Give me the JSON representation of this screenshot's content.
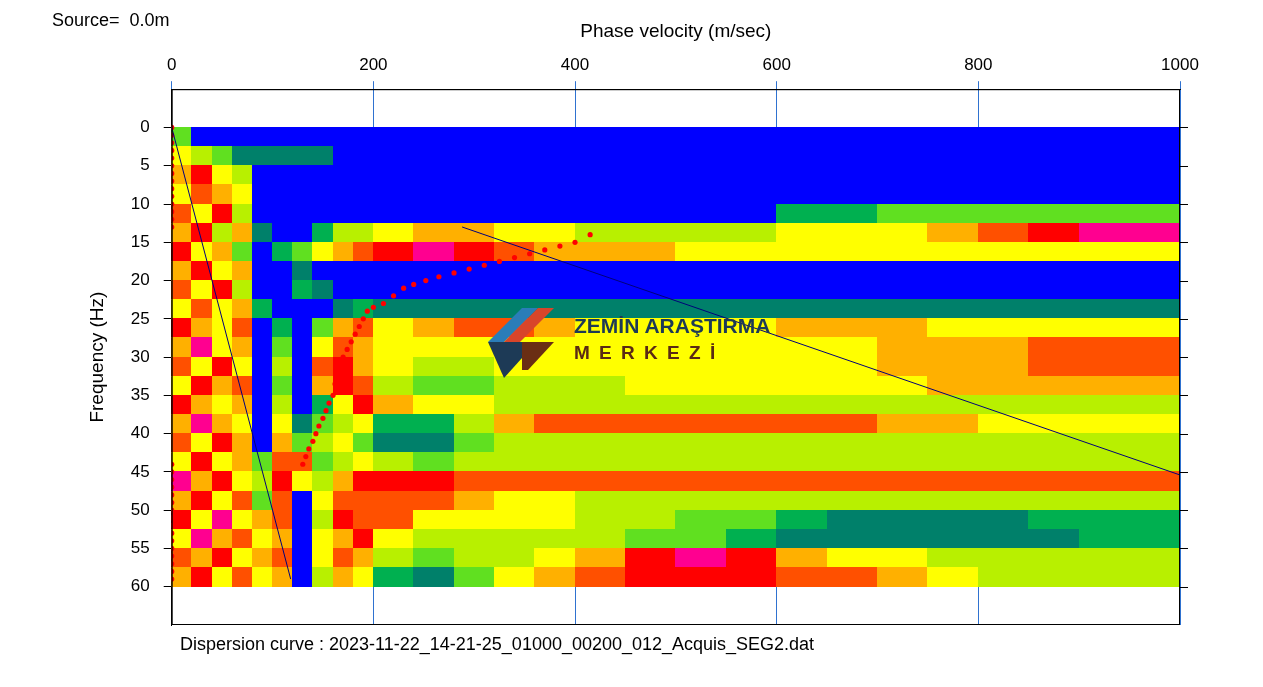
{
  "chart_data": {
    "type": "heatmap",
    "title": "Source=  0.0m",
    "x_label": "Phase velocity (m/sec)",
    "y_label": "Frequency (Hz)",
    "footer": "Dispersion curve : 2023-11-22_14-21-25_01000_00200_012_Acquis_SEG2.dat",
    "watermark": [
      "ZEMİN ARAŞTIRMA",
      "M E R K E Z İ"
    ],
    "xlim": [
      0,
      1000
    ],
    "xticks": [
      0,
      200,
      400,
      600,
      800,
      1000
    ],
    "ylim": [
      -5,
      65
    ],
    "yticks": [
      0,
      5,
      10,
      15,
      20,
      25,
      30,
      35,
      40,
      45,
      50,
      55,
      60
    ],
    "grid": true,
    "colors": [
      "#0000ff",
      "#00806a",
      "#00b050",
      "#60e020",
      "#b8f000",
      "#ffff00",
      "#ffb000",
      "#ff5000",
      "#ff0000",
      "#ff0090"
    ],
    "cells": {
      "zlim": [
        0,
        9
      ],
      "x_edges": [
        0,
        20,
        40,
        60,
        80,
        100,
        120,
        140,
        160,
        180,
        200,
        240,
        280,
        320,
        360,
        400,
        450,
        500,
        550,
        600,
        650,
        700,
        750,
        800,
        850,
        900,
        950,
        1000
      ],
      "y_edges": [
        0,
        2.5,
        5,
        7.5,
        10,
        12.5,
        15,
        17.5,
        20,
        22.5,
        25,
        27.5,
        30,
        32.5,
        35,
        37.5,
        40,
        42.5,
        45,
        47.5,
        50,
        52.5,
        55,
        57.5,
        60
      ],
      "z": [
        [
          3,
          0,
          0,
          0,
          0,
          0,
          0,
          0,
          0,
          0,
          0,
          0,
          0,
          0,
          0,
          0,
          0,
          0,
          0,
          0,
          0,
          0,
          0,
          0,
          0,
          0,
          0
        ],
        [
          5,
          4,
          3,
          1,
          1,
          1,
          1,
          1,
          0,
          0,
          0,
          0,
          0,
          0,
          0,
          0,
          0,
          0,
          0,
          0,
          0,
          0,
          0,
          0,
          0,
          0,
          0
        ],
        [
          6,
          8,
          5,
          4,
          0,
          0,
          0,
          0,
          0,
          0,
          0,
          0,
          0,
          0,
          0,
          0,
          0,
          0,
          0,
          0,
          0,
          0,
          0,
          0,
          0,
          0,
          0
        ],
        [
          5,
          7,
          6,
          5,
          0,
          0,
          0,
          0,
          0,
          0,
          0,
          0,
          0,
          0,
          0,
          0,
          0,
          0,
          0,
          0,
          0,
          0,
          0,
          0,
          0,
          0,
          0
        ],
        [
          7,
          5,
          8,
          4,
          0,
          0,
          0,
          0,
          0,
          0,
          0,
          0,
          0,
          0,
          0,
          0,
          0,
          0,
          0,
          2,
          2,
          3,
          3,
          3,
          3,
          3,
          3
        ],
        [
          6,
          8,
          4,
          6,
          1,
          0,
          0,
          2,
          4,
          4,
          5,
          6,
          6,
          5,
          5,
          4,
          4,
          4,
          4,
          5,
          5,
          5,
          6,
          7,
          8,
          9,
          9
        ],
        [
          8,
          5,
          6,
          3,
          0,
          2,
          3,
          5,
          6,
          7,
          8,
          9,
          8,
          7,
          6,
          6,
          6,
          5,
          5,
          5,
          5,
          5,
          5,
          5,
          5,
          5,
          5
        ],
        [
          6,
          8,
          5,
          6,
          0,
          0,
          1,
          0,
          0,
          0,
          0,
          0,
          0,
          0,
          0,
          0,
          0,
          0,
          0,
          0,
          0,
          0,
          0,
          0,
          0,
          0,
          0
        ],
        [
          7,
          5,
          8,
          4,
          0,
          0,
          2,
          1,
          0,
          0,
          0,
          0,
          0,
          0,
          0,
          0,
          0,
          0,
          0,
          0,
          0,
          0,
          0,
          0,
          0,
          0,
          0
        ],
        [
          5,
          7,
          5,
          6,
          2,
          0,
          0,
          0,
          1,
          2,
          1,
          1,
          1,
          1,
          1,
          1,
          1,
          1,
          1,
          1,
          1,
          1,
          1,
          1,
          1,
          1,
          1
        ],
        [
          8,
          6,
          5,
          7,
          0,
          2,
          0,
          3,
          6,
          7,
          5,
          6,
          7,
          7,
          6,
          5,
          5,
          5,
          5,
          6,
          6,
          6,
          5,
          5,
          5,
          5,
          5
        ],
        [
          6,
          9,
          5,
          6,
          0,
          3,
          0,
          5,
          7,
          6,
          5,
          5,
          5,
          5,
          5,
          5,
          5,
          5,
          5,
          5,
          5,
          6,
          6,
          6,
          7,
          7,
          7
        ],
        [
          7,
          5,
          8,
          5,
          0,
          4,
          0,
          7,
          8,
          6,
          5,
          4,
          4,
          5,
          5,
          5,
          5,
          5,
          5,
          5,
          5,
          6,
          6,
          6,
          7,
          7,
          7
        ],
        [
          5,
          8,
          6,
          7,
          0,
          3,
          0,
          6,
          8,
          7,
          4,
          3,
          3,
          4,
          4,
          4,
          5,
          5,
          5,
          5,
          5,
          5,
          6,
          6,
          6,
          6,
          6
        ],
        [
          8,
          6,
          5,
          6,
          0,
          4,
          0,
          2,
          5,
          8,
          6,
          5,
          5,
          4,
          4,
          4,
          4,
          4,
          4,
          4,
          4,
          4,
          4,
          4,
          4,
          4,
          4
        ],
        [
          6,
          9,
          6,
          5,
          0,
          5,
          1,
          3,
          4,
          5,
          2,
          2,
          4,
          6,
          7,
          7,
          7,
          7,
          7,
          7,
          7,
          6,
          6,
          5,
          5,
          5,
          5
        ],
        [
          7,
          5,
          8,
          6,
          0,
          6,
          3,
          4,
          5,
          3,
          1,
          1,
          3,
          4,
          4,
          4,
          4,
          4,
          4,
          4,
          4,
          4,
          4,
          4,
          4,
          4,
          4
        ],
        [
          5,
          8,
          5,
          6,
          3,
          7,
          7,
          3,
          4,
          5,
          4,
          3,
          4,
          4,
          4,
          4,
          4,
          4,
          4,
          4,
          4,
          4,
          4,
          4,
          4,
          4,
          4
        ],
        [
          9,
          6,
          8,
          5,
          4,
          8,
          5,
          4,
          6,
          8,
          8,
          8,
          7,
          7,
          7,
          7,
          7,
          7,
          7,
          7,
          7,
          7,
          7,
          7,
          7,
          7,
          7
        ],
        [
          6,
          8,
          5,
          7,
          3,
          7,
          0,
          5,
          7,
          7,
          7,
          7,
          6,
          5,
          5,
          4,
          4,
          4,
          4,
          4,
          4,
          4,
          4,
          4,
          4,
          4,
          4
        ],
        [
          8,
          5,
          9,
          5,
          6,
          7,
          0,
          4,
          8,
          7,
          7,
          5,
          5,
          5,
          5,
          4,
          4,
          3,
          3,
          2,
          1,
          1,
          1,
          1,
          2,
          2,
          2
        ],
        [
          5,
          9,
          6,
          7,
          5,
          6,
          0,
          5,
          6,
          8,
          5,
          4,
          4,
          4,
          4,
          4,
          3,
          3,
          2,
          1,
          1,
          1,
          1,
          1,
          1,
          2,
          2
        ],
        [
          7,
          6,
          8,
          5,
          6,
          7,
          0,
          5,
          7,
          6,
          4,
          3,
          4,
          4,
          5,
          6,
          8,
          9,
          8,
          6,
          5,
          5,
          4,
          4,
          4,
          4,
          4
        ],
        [
          6,
          8,
          5,
          7,
          5,
          6,
          0,
          4,
          6,
          5,
          2,
          1,
          3,
          5,
          6,
          7,
          8,
          8,
          8,
          7,
          7,
          6,
          5,
          4,
          4,
          4,
          4
        ]
      ]
    },
    "points": {
      "color": "#ff0000",
      "marker": "circle",
      "x": [
        0,
        0,
        0,
        0,
        0,
        0,
        0,
        0,
        0,
        0,
        0,
        0,
        0,
        0,
        130,
        133,
        136,
        140,
        143,
        146,
        150,
        153,
        156,
        160,
        162,
        163,
        166,
        170,
        174,
        178,
        182,
        186,
        190,
        194,
        200,
        210,
        220,
        230,
        240,
        252,
        265,
        280,
        295,
        310,
        325,
        340,
        355,
        370,
        385,
        400,
        415,
        0,
        0,
        0,
        0,
        0,
        0,
        0,
        0,
        0,
        0,
        0,
        0,
        0,
        0,
        0,
        0
      ],
      "y": [
        0,
        1,
        2,
        3,
        4,
        5,
        6,
        7,
        8,
        9,
        10,
        11,
        12,
        13,
        44,
        43,
        42,
        41,
        40,
        39,
        38,
        37,
        36,
        35,
        33.5,
        32,
        31,
        30,
        29,
        28,
        27,
        26,
        25,
        24,
        23.5,
        23,
        22,
        21,
        20.5,
        20,
        19.5,
        19,
        18.5,
        18,
        17.5,
        17,
        16.5,
        16,
        15.5,
        15,
        14,
        44,
        45,
        46,
        47,
        48,
        49,
        50,
        51,
        52,
        53,
        54,
        55,
        56,
        57,
        58,
        59
      ]
    },
    "lines": [
      {
        "x": [
          0,
          118
        ],
        "y": [
          0,
          59
        ],
        "color": "#00007a",
        "line_style": "solid"
      },
      {
        "x": [
          288,
          1000
        ],
        "y": [
          13,
          45.4
        ],
        "color": "#00007a",
        "line_style": "solid"
      }
    ]
  }
}
